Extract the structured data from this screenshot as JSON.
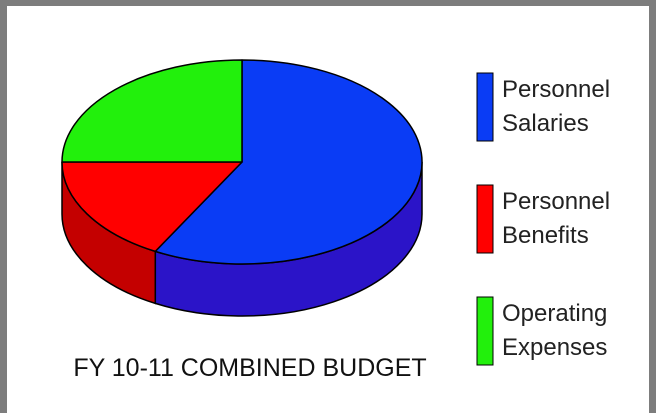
{
  "chart_data": {
    "type": "pie",
    "style": "3d",
    "title": "FY 10-11 COMBINED BUDGET",
    "legend_position": "right",
    "categories": [
      "Personnel Salaries",
      "Personnel Benefits",
      "Operating Expenses"
    ],
    "legend_lines": [
      [
        "Personnel",
        "Salaries"
      ],
      [
        "Personnel",
        "Benefits"
      ],
      [
        "Operating",
        "Expenses"
      ]
    ],
    "values": [
      58,
      17,
      25
    ],
    "unit": "percent (estimated)",
    "colors": [
      "#0a3cf5",
      "#ff0000",
      "#22f00c"
    ],
    "side_colors": [
      "#2b14c8",
      "#c40000",
      "#18a808"
    ]
  }
}
